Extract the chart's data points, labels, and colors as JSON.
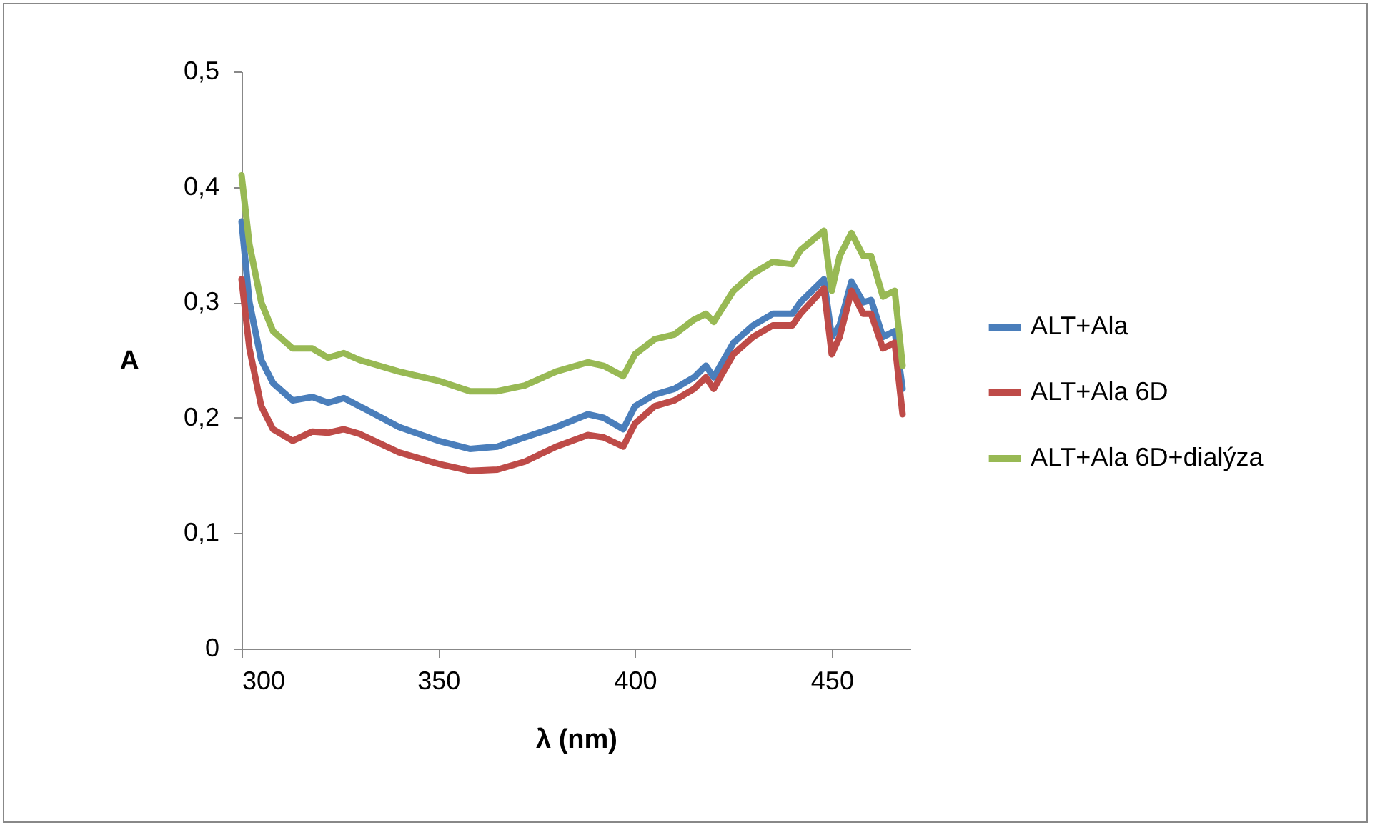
{
  "chart_data": {
    "type": "line",
    "xlabel": "λ (nm)",
    "ylabel": "A",
    "x": [
      300,
      302,
      305,
      308,
      313,
      318,
      322,
      326,
      330,
      340,
      350,
      358,
      365,
      372,
      380,
      388,
      392,
      397,
      400,
      405,
      410,
      415,
      418,
      420,
      425,
      430,
      435,
      440,
      442,
      448,
      450,
      452,
      455,
      458,
      460,
      463,
      466,
      468
    ],
    "series": [
      {
        "name": "ALT+Ala",
        "color": "#4a7ebb",
        "values": [
          0.37,
          0.3,
          0.25,
          0.23,
          0.215,
          0.218,
          0.213,
          0.217,
          0.21,
          0.192,
          0.18,
          0.173,
          0.175,
          0.183,
          0.192,
          0.203,
          0.2,
          0.19,
          0.21,
          0.22,
          0.225,
          0.235,
          0.245,
          0.235,
          0.265,
          0.28,
          0.29,
          0.29,
          0.3,
          0.32,
          0.27,
          0.28,
          0.318,
          0.3,
          0.302,
          0.27,
          0.275,
          0.225
        ]
      },
      {
        "name": "ALT+Ala 6D",
        "color": "#be4b48",
        "values": [
          0.32,
          0.26,
          0.21,
          0.19,
          0.18,
          0.188,
          0.187,
          0.19,
          0.186,
          0.17,
          0.16,
          0.154,
          0.155,
          0.162,
          0.175,
          0.185,
          0.183,
          0.175,
          0.195,
          0.21,
          0.215,
          0.225,
          0.235,
          0.225,
          0.255,
          0.27,
          0.28,
          0.28,
          0.29,
          0.312,
          0.255,
          0.27,
          0.31,
          0.29,
          0.29,
          0.26,
          0.265,
          0.203
        ]
      },
      {
        "name": "ALT+Ala 6D+dialýza",
        "color": "#98b954",
        "values": [
          0.41,
          0.35,
          0.3,
          0.275,
          0.26,
          0.26,
          0.252,
          0.256,
          0.25,
          0.24,
          0.232,
          0.223,
          0.223,
          0.228,
          0.24,
          0.248,
          0.245,
          0.236,
          0.255,
          0.268,
          0.272,
          0.285,
          0.29,
          0.283,
          0.31,
          0.325,
          0.335,
          0.333,
          0.345,
          0.362,
          0.31,
          0.34,
          0.36,
          0.34,
          0.34,
          0.305,
          0.31,
          0.245
        ]
      }
    ],
    "xlim": [
      300,
      470
    ],
    "xticks": [
      300,
      350,
      400,
      450
    ],
    "ylim": [
      0,
      0.5
    ],
    "yticks": [
      {
        "value": 0,
        "label": "0"
      },
      {
        "value": 0.1,
        "label": "0,1"
      },
      {
        "value": 0.2,
        "label": "0,2"
      },
      {
        "value": 0.3,
        "label": "0,3"
      },
      {
        "value": 0.4,
        "label": "0,4"
      },
      {
        "value": 0.5,
        "label": "0,5"
      }
    ],
    "grid": false,
    "legend": "right",
    "marker": "none",
    "line_style": "solid"
  }
}
